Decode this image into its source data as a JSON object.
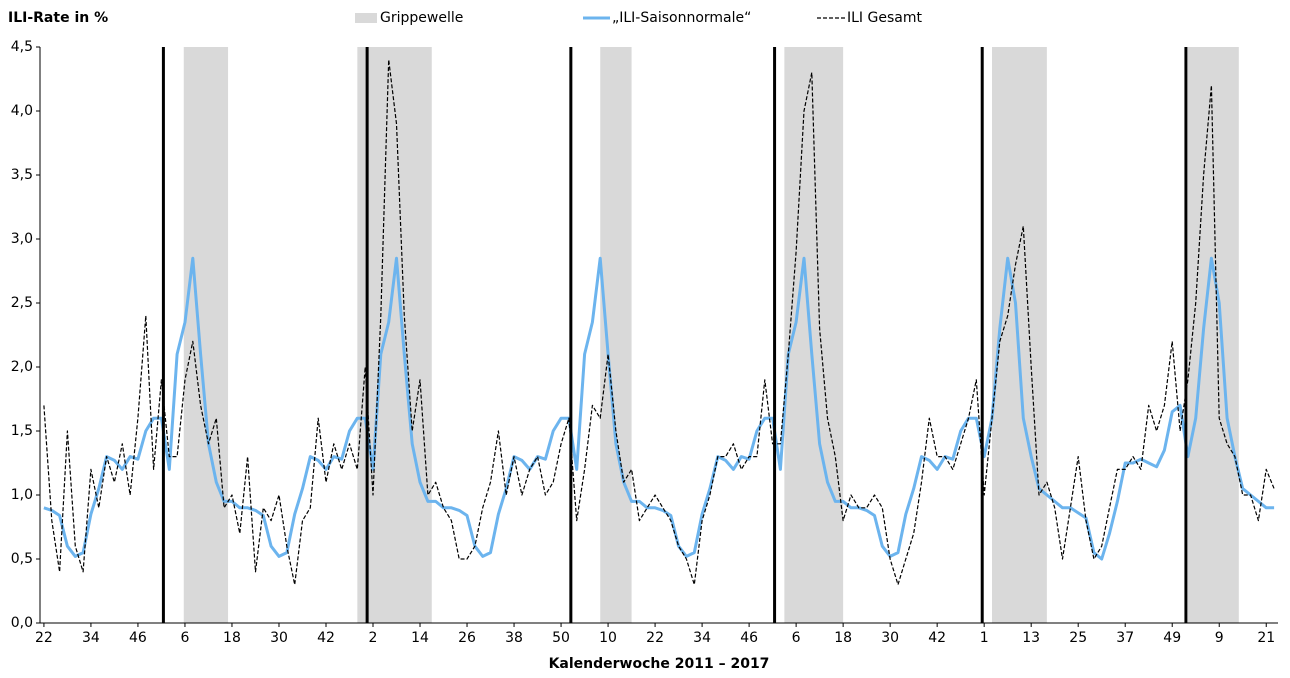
{
  "chart_data": {
    "type": "line",
    "y_label": "ILI-Rate in %",
    "x_label": "Kalenderwoche 2011 – 2017",
    "xlim": [
      -1,
      315
    ],
    "ylim": [
      0,
      4.5
    ],
    "xticks": [
      {
        "value": 0,
        "label": "22"
      },
      {
        "value": 12,
        "label": "34"
      },
      {
        "value": 24,
        "label": "46"
      },
      {
        "value": 36,
        "label": "6"
      },
      {
        "value": 48,
        "label": "18"
      },
      {
        "value": 60,
        "label": "30"
      },
      {
        "value": 72,
        "label": "42"
      },
      {
        "value": 84,
        "label": "2"
      },
      {
        "value": 96,
        "label": "14"
      },
      {
        "value": 108,
        "label": "26"
      },
      {
        "value": 120,
        "label": "38"
      },
      {
        "value": 132,
        "label": "50"
      },
      {
        "value": 144,
        "label": "10"
      },
      {
        "value": 156,
        "label": "22"
      },
      {
        "value": 168,
        "label": "34"
      },
      {
        "value": 180,
        "label": "46"
      },
      {
        "value": 192,
        "label": "6"
      },
      {
        "value": 204,
        "label": "18"
      },
      {
        "value": 216,
        "label": "30"
      },
      {
        "value": 228,
        "label": "42"
      },
      {
        "value": 240,
        "label": "1"
      },
      {
        "value": 252,
        "label": "13"
      },
      {
        "value": 264,
        "label": "25"
      },
      {
        "value": 276,
        "label": "37"
      },
      {
        "value": 288,
        "label": "49"
      },
      {
        "value": 300,
        "label": "9"
      },
      {
        "value": 312,
        "label": "21"
      }
    ],
    "yticks": [
      {
        "value": 0,
        "label": "0,0"
      },
      {
        "value": 0.5,
        "label": "0,5"
      },
      {
        "value": 1,
        "label": "1,0"
      },
      {
        "value": 1.5,
        "label": "1,5"
      },
      {
        "value": 2,
        "label": "2,0"
      },
      {
        "value": 2.5,
        "label": "2,5"
      },
      {
        "value": 3,
        "label": "3,0"
      },
      {
        "value": 3.5,
        "label": "3,5"
      },
      {
        "value": 4,
        "label": "4,0"
      },
      {
        "value": 4.5,
        "label": "4,5"
      }
    ],
    "year_lines": [
      30.5,
      82.5,
      134.5,
      186.5,
      239.5,
      291.5
    ],
    "bands": {
      "name": "Grippewelle",
      "color": "#d9d9d9",
      "ranges": [
        [
          35.7,
          47
        ],
        [
          80,
          99
        ],
        [
          142,
          150
        ],
        [
          189,
          204
        ],
        [
          242,
          256
        ],
        [
          292,
          305
        ]
      ]
    },
    "x": [
      0,
      2,
      4,
      6,
      8,
      10,
      12,
      14,
      16,
      18,
      20,
      22,
      24,
      26,
      28,
      30,
      32,
      34,
      36,
      38,
      40,
      42,
      44,
      46,
      48,
      50,
      52,
      54,
      56,
      58,
      60,
      62,
      64,
      66,
      68,
      70,
      72,
      74,
      76,
      78,
      80,
      82,
      84,
      86,
      88,
      90,
      92,
      94,
      96,
      98,
      100,
      102,
      104,
      106,
      108,
      110,
      112,
      114,
      116,
      118,
      120,
      122,
      124,
      126,
      128,
      130,
      132,
      134,
      136,
      138,
      140,
      142,
      144,
      146,
      148,
      150,
      152,
      154,
      156,
      158,
      160,
      162,
      164,
      166,
      168,
      170,
      172,
      174,
      176,
      178,
      180,
      182,
      184,
      186,
      188,
      190,
      192,
      194,
      196,
      198,
      200,
      202,
      204,
      206,
      208,
      210,
      212,
      214,
      216,
      218,
      220,
      222,
      224,
      226,
      228,
      230,
      232,
      234,
      236,
      238,
      240,
      242,
      244,
      246,
      248,
      250,
      252,
      254,
      256,
      258,
      260,
      262,
      264,
      266,
      268,
      270,
      272,
      274,
      276,
      278,
      280,
      282,
      284,
      286,
      288,
      290,
      292,
      294,
      296,
      298,
      300,
      302,
      304,
      306,
      308,
      310,
      312,
      314
    ],
    "series": [
      {
        "name": "„ILI-Saisonnormale“",
        "color": "#6cb4ee",
        "values": [
          0.9,
          0.88,
          0.84,
          0.6,
          0.52,
          0.55,
          0.85,
          1.05,
          1.3,
          1.27,
          1.2,
          1.3,
          1.28,
          1.5,
          1.6,
          1.6,
          1.2,
          2.1,
          2.35,
          2.85,
          2.1,
          1.4,
          1.1,
          0.95,
          0.95,
          0.9,
          0.9,
          0.88,
          0.84,
          0.6,
          0.52,
          0.55,
          0.85,
          1.05,
          1.3,
          1.27,
          1.2,
          1.3,
          1.28,
          1.5,
          1.6,
          1.6,
          1.2,
          2.1,
          2.35,
          2.85,
          2.1,
          1.4,
          1.1,
          0.95,
          0.95,
          0.9,
          0.9,
          0.88,
          0.84,
          0.6,
          0.52,
          0.55,
          0.85,
          1.05,
          1.3,
          1.27,
          1.2,
          1.3,
          1.28,
          1.5,
          1.6,
          1.6,
          1.2,
          2.1,
          2.35,
          2.85,
          2.1,
          1.4,
          1.1,
          0.95,
          0.95,
          0.9,
          0.9,
          0.88,
          0.84,
          0.6,
          0.52,
          0.55,
          0.85,
          1.05,
          1.3,
          1.27,
          1.2,
          1.3,
          1.28,
          1.5,
          1.6,
          1.6,
          1.2,
          2.1,
          2.35,
          2.85,
          2.1,
          1.4,
          1.1,
          0.95,
          0.95,
          0.9,
          0.9,
          0.88,
          0.84,
          0.6,
          0.52,
          0.55,
          0.85,
          1.05,
          1.3,
          1.27,
          1.2,
          1.3,
          1.28,
          1.5,
          1.6,
          1.6,
          1.3,
          1.6,
          2.3,
          2.85,
          2.5,
          1.6,
          1.3,
          1.05,
          1.0,
          0.95,
          0.9,
          0.9,
          0.86,
          0.82,
          0.55,
          0.5,
          0.7,
          0.95,
          1.25,
          1.25,
          1.28,
          1.25,
          1.22,
          1.35,
          1.65,
          1.7,
          1.3,
          1.6,
          2.3,
          2.85,
          2.5,
          1.6,
          1.3,
          1.05,
          1.0,
          0.95,
          0.9,
          0.9
        ]
      },
      {
        "name": "ILI Gesamt",
        "color": "#000000",
        "values": [
          1.7,
          0.8,
          0.4,
          1.5,
          0.6,
          0.4,
          1.2,
          0.9,
          1.3,
          1.1,
          1.4,
          1.0,
          1.6,
          2.4,
          1.2,
          1.9,
          1.3,
          1.3,
          1.9,
          2.2,
          1.7,
          1.4,
          1.6,
          0.9,
          1.0,
          0.7,
          1.3,
          0.4,
          0.9,
          0.8,
          1.0,
          0.6,
          0.3,
          0.8,
          0.9,
          1.6,
          1.1,
          1.4,
          1.2,
          1.4,
          1.2,
          2.0,
          1.0,
          2.4,
          4.4,
          3.9,
          2.4,
          1.5,
          1.9,
          1.0,
          1.1,
          0.9,
          0.8,
          0.5,
          0.5,
          0.6,
          0.9,
          1.1,
          1.5,
          1.0,
          1.3,
          1.0,
          1.2,
          1.3,
          1.0,
          1.1,
          1.4,
          1.6,
          0.8,
          1.2,
          1.7,
          1.6,
          2.1,
          1.5,
          1.1,
          1.2,
          0.8,
          0.9,
          1.0,
          0.9,
          0.8,
          0.6,
          0.5,
          0.3,
          0.8,
          1.0,
          1.3,
          1.3,
          1.4,
          1.2,
          1.3,
          1.3,
          1.9,
          1.4,
          1.4,
          2.1,
          2.9,
          4.0,
          4.3,
          2.3,
          1.6,
          1.3,
          0.8,
          1.0,
          0.9,
          0.9,
          1.0,
          0.9,
          0.5,
          0.3,
          0.5,
          0.7,
          1.1,
          1.6,
          1.3,
          1.3,
          1.2,
          1.4,
          1.6,
          1.9,
          1.0,
          1.6,
          2.2,
          2.4,
          2.8,
          3.1,
          2.0,
          1.0,
          1.1,
          0.9,
          0.5,
          0.9,
          1.3,
          0.8,
          0.5,
          0.6,
          0.9,
          1.2,
          1.2,
          1.3,
          1.2,
          1.7,
          1.5,
          1.7,
          2.2,
          1.5,
          1.9,
          2.5,
          3.5,
          4.2,
          1.6,
          1.4,
          1.3,
          1.0,
          1.0,
          0.8,
          1.2,
          1.05
        ]
      }
    ]
  }
}
